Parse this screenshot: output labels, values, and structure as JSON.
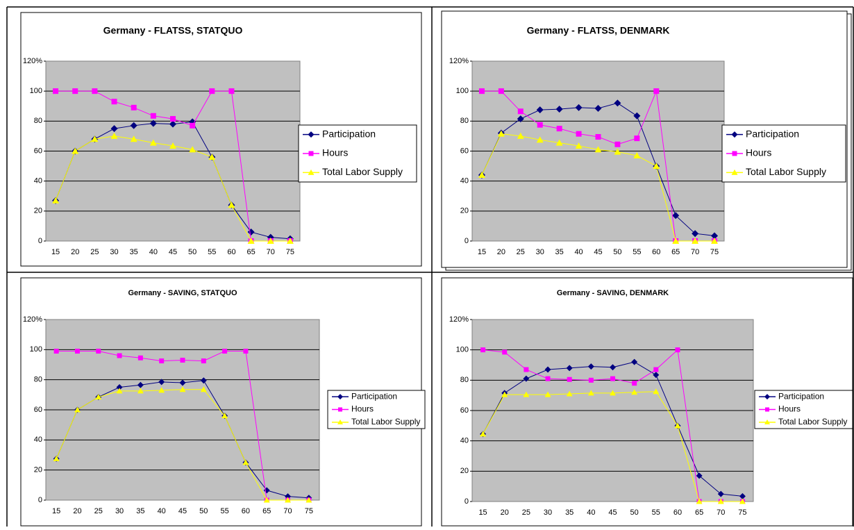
{
  "chart_data": [
    {
      "type": "line",
      "title": "Germany - FLATSS, STATQUO",
      "categories": [
        "15",
        "20",
        "25",
        "30",
        "35",
        "40",
        "45",
        "50",
        "55",
        "60",
        "65",
        "70",
        "75"
      ],
      "ylim": [
        0,
        120
      ],
      "yticks": [
        0,
        20,
        40,
        60,
        80,
        100,
        {
          "value": 120,
          "label": "120%"
        }
      ],
      "grid": true,
      "legend": "right",
      "series": [
        {
          "name": "Participation",
          "color": "#000080",
          "marker": "diamond",
          "values": [
            27,
            60,
            68,
            75,
            77,
            78.5,
            78,
            79.5,
            56,
            24,
            6,
            2.5,
            1.5
          ]
        },
        {
          "name": "Hours",
          "color": "#ff00ff",
          "marker": "square",
          "values": [
            100,
            100,
            100,
            93,
            89,
            83.5,
            81.5,
            77,
            100,
            100,
            0,
            0,
            0
          ]
        },
        {
          "name": "Total Labor Supply",
          "color": "#ffff00",
          "marker": "triangle",
          "values": [
            27,
            60,
            68,
            70,
            68,
            65.5,
            63.5,
            61,
            56,
            24,
            0,
            0,
            0
          ]
        }
      ]
    },
    {
      "type": "line",
      "title": "Germany - FLATSS, DENMARK",
      "categories": [
        "15",
        "20",
        "25",
        "30",
        "35",
        "40",
        "45",
        "50",
        "55",
        "60",
        "65",
        "70",
        "75"
      ],
      "ylim": [
        0,
        120
      ],
      "yticks": [
        0,
        20,
        40,
        60,
        80,
        100,
        {
          "value": 120,
          "label": "120%"
        }
      ],
      "grid": true,
      "legend": "right",
      "series": [
        {
          "name": "Participation",
          "color": "#000080",
          "marker": "diamond",
          "values": [
            44,
            72,
            81.5,
            87.5,
            88,
            89,
            88.5,
            92,
            83.5,
            50,
            17,
            5,
            3.5
          ]
        },
        {
          "name": "Hours",
          "color": "#ff00ff",
          "marker": "square",
          "values": [
            100,
            100,
            86.5,
            77.5,
            75,
            71.5,
            69.5,
            64.5,
            68.5,
            100,
            0,
            0,
            0
          ]
        },
        {
          "name": "Total Labor Supply",
          "color": "#ffff00",
          "marker": "triangle",
          "values": [
            44,
            71.5,
            70,
            67.5,
            65.5,
            63.5,
            61,
            59.5,
            57,
            50,
            0,
            0,
            0
          ]
        }
      ]
    },
    {
      "type": "line",
      "title": "Germany - SAVING, STATQUO",
      "categories": [
        "15",
        "20",
        "25",
        "30",
        "35",
        "40",
        "45",
        "50",
        "55",
        "60",
        "65",
        "70",
        "75"
      ],
      "ylim": [
        0,
        120
      ],
      "yticks": [
        0,
        20,
        40,
        60,
        80,
        100,
        {
          "value": 120,
          "label": "120%"
        }
      ],
      "grid": true,
      "legend": "right",
      "series": [
        {
          "name": "Participation",
          "color": "#000080",
          "marker": "diamond",
          "values": [
            27.5,
            60,
            68.5,
            75,
            76.5,
            78.5,
            78,
            79.5,
            56,
            25,
            6.5,
            2.5,
            1.5
          ]
        },
        {
          "name": "Hours",
          "color": "#ff00ff",
          "marker": "square",
          "values": [
            99,
            99,
            99,
            96,
            94.5,
            92.5,
            93,
            92.5,
            99,
            99,
            0,
            0,
            0
          ]
        },
        {
          "name": "Total Labor Supply",
          "color": "#ffff00",
          "marker": "triangle",
          "values": [
            27.5,
            60,
            68.5,
            72.5,
            72.5,
            73,
            73.5,
            73.5,
            56,
            25,
            0,
            0,
            0
          ]
        }
      ]
    },
    {
      "type": "line",
      "title": "Germany - SAVING, DENMARK",
      "categories": [
        "15",
        "20",
        "25",
        "30",
        "35",
        "40",
        "45",
        "50",
        "55",
        "60",
        "65",
        "70",
        "75"
      ],
      "ylim": [
        0,
        120
      ],
      "yticks": [
        0,
        20,
        40,
        60,
        80,
        100,
        {
          "value": 120,
          "label": "120%"
        }
      ],
      "grid": true,
      "legend": "right",
      "series": [
        {
          "name": "Participation",
          "color": "#000080",
          "marker": "diamond",
          "values": [
            44.5,
            71.5,
            81,
            87,
            88,
            89,
            88.5,
            92,
            83.5,
            50,
            17,
            5,
            3.5
          ]
        },
        {
          "name": "Hours",
          "color": "#ff00ff",
          "marker": "square",
          "values": [
            100,
            98.5,
            87,
            81,
            80.5,
            80,
            81,
            78,
            87,
            100,
            0,
            0,
            0
          ]
        },
        {
          "name": "Total Labor Supply",
          "color": "#ffff00",
          "marker": "triangle",
          "values": [
            44.5,
            70.5,
            70.5,
            70.5,
            71,
            71.5,
            71.5,
            72,
            72.5,
            50,
            0,
            0,
            0
          ]
        }
      ]
    }
  ]
}
